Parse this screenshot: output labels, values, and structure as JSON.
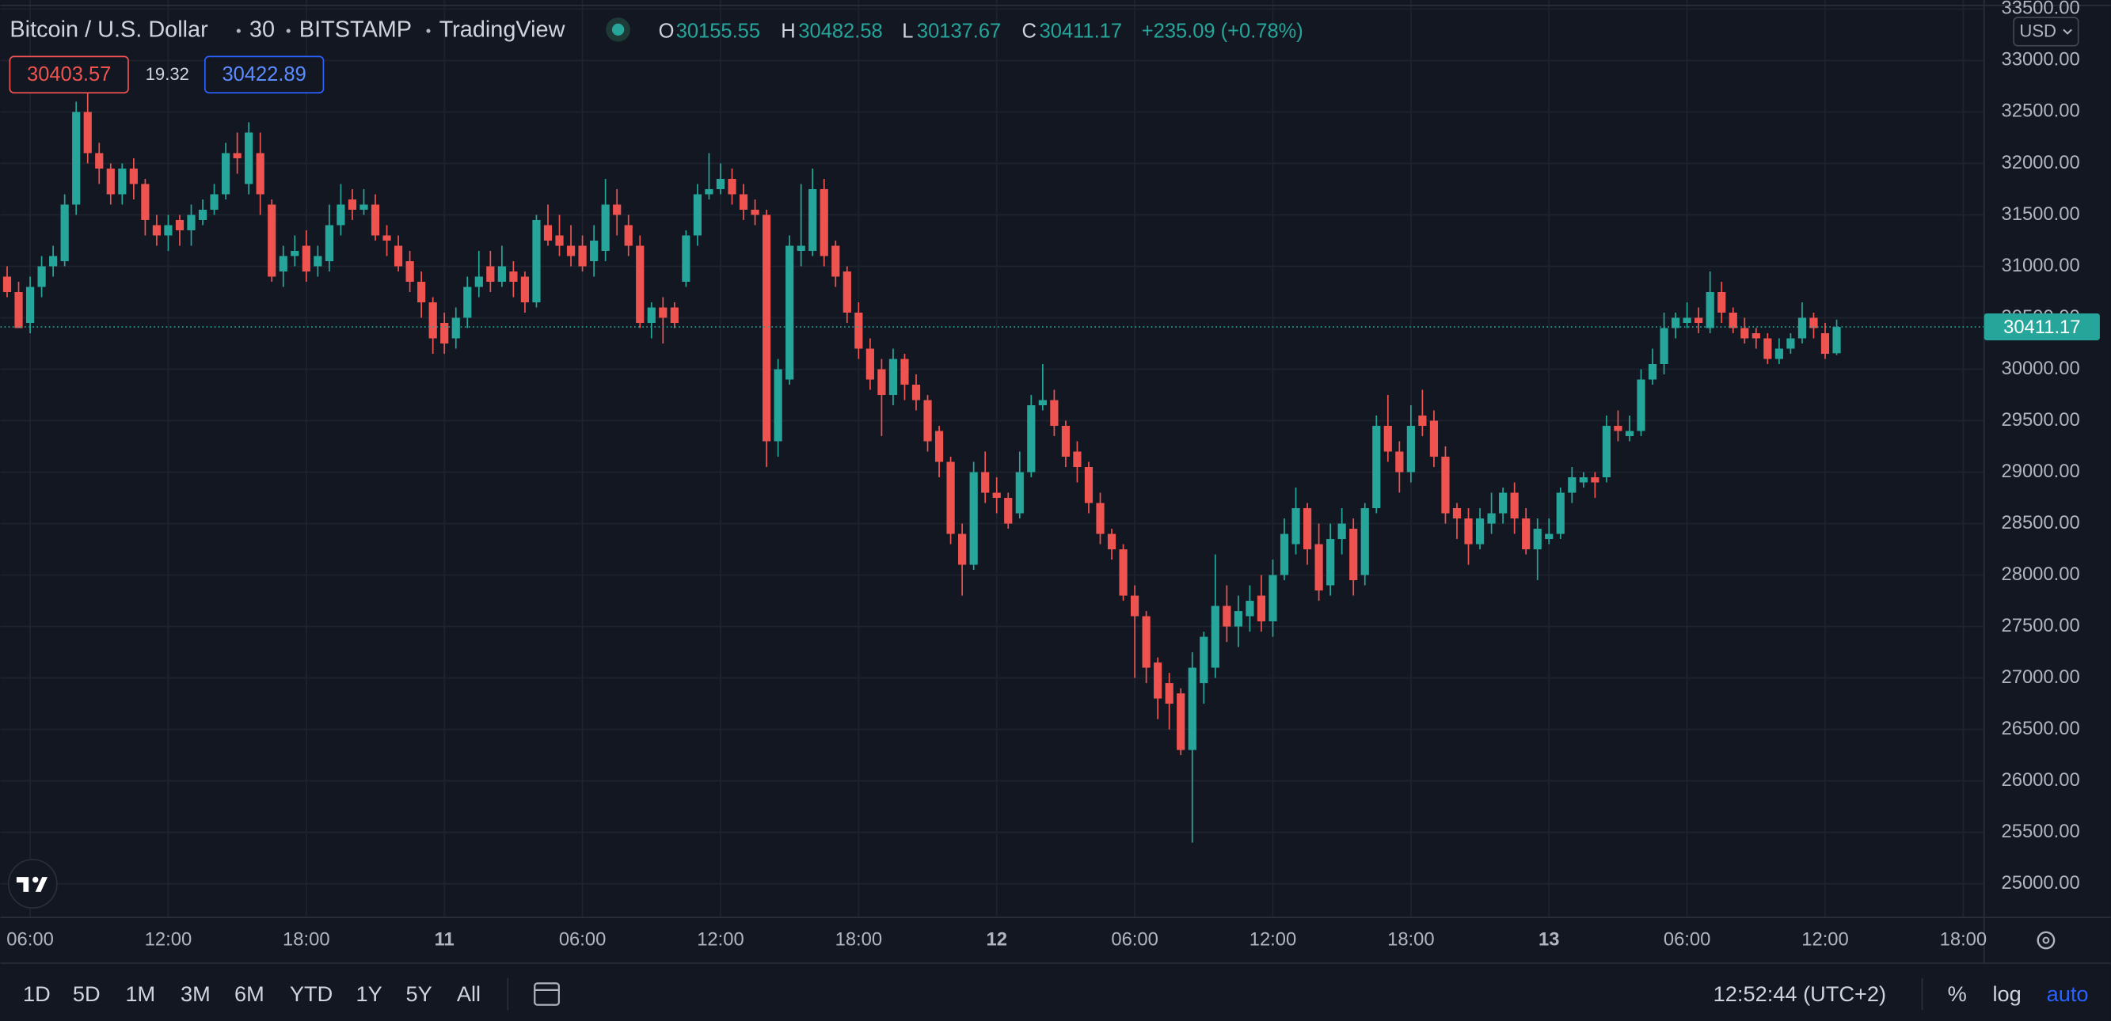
{
  "chart_data": {
    "type": "candlestick",
    "title": "Bitcoin / U.S. Dollar",
    "interval": "30",
    "exchange": "BITSTAMP",
    "source": "TradingView",
    "ohlc_labels": [
      "O",
      "H",
      "L",
      "C"
    ],
    "change": "+235.09 (+0.78%)",
    "sell_price": 30403.57,
    "spread": 19.32,
    "buy_price": 30422.89,
    "currency": "USD",
    "up_color": "#26a69a",
    "down_color": "#ef5350",
    "grid": true,
    "ylim": [
      24673,
      33588
    ],
    "yticks": [
      {
        "value": 25000,
        "label": "25000.00"
      },
      {
        "value": 25500,
        "label": "25500.00"
      },
      {
        "value": 26000,
        "label": "26000.00"
      },
      {
        "value": 26500,
        "label": "26500.00"
      },
      {
        "value": 27000,
        "label": "27000.00"
      },
      {
        "value": 27500,
        "label": "27500.00"
      },
      {
        "value": 28000,
        "label": "28000.00"
      },
      {
        "value": 28500,
        "label": "28500.00"
      },
      {
        "value": 29000,
        "label": "29000.00"
      },
      {
        "value": 29500,
        "label": "29500.00"
      },
      {
        "value": 30000,
        "label": "30000.00"
      },
      {
        "value": 30500,
        "label": "30500.00"
      },
      {
        "value": 31000,
        "label": "31000.00"
      },
      {
        "value": 31500,
        "label": "31500.00"
      },
      {
        "value": 32000,
        "label": "32000.00"
      },
      {
        "value": 32500,
        "label": "32500.00"
      },
      {
        "value": 33000,
        "label": "33000.00"
      },
      {
        "value": 33500,
        "label": "33500.00"
      }
    ],
    "categories": [
      null,
      null,
      "06:00",
      null,
      null,
      null,
      null,
      null,
      null,
      null,
      null,
      null,
      null,
      null,
      "12:00",
      null,
      null,
      null,
      null,
      null,
      null,
      null,
      null,
      null,
      null,
      null,
      "18:00",
      null,
      null,
      null,
      null,
      null,
      null,
      null,
      null,
      null,
      null,
      null,
      "11",
      null,
      null,
      null,
      null,
      null,
      null,
      null,
      null,
      null,
      null,
      null,
      "06:00",
      null,
      null,
      null,
      null,
      null,
      null,
      null,
      null,
      null,
      null,
      null,
      "12:00",
      null,
      null,
      null,
      null,
      null,
      null,
      null,
      null,
      null,
      null,
      null,
      "18:00",
      null,
      null,
      null,
      null,
      null,
      null,
      null,
      null,
      null,
      null,
      null,
      "12",
      null,
      null,
      null,
      null,
      null,
      null,
      null,
      null,
      null,
      null,
      null,
      "06:00",
      null,
      null,
      null,
      null,
      null,
      null,
      null,
      null,
      null,
      null,
      null,
      "12:00",
      null,
      null,
      null,
      null,
      null,
      null,
      null,
      null,
      null,
      null,
      null,
      "18:00",
      null,
      null,
      null,
      null,
      null,
      null,
      null,
      null,
      null,
      null,
      null,
      "13",
      null,
      null,
      null,
      null,
      null,
      null,
      null,
      null,
      null,
      null,
      null,
      "06:00",
      null,
      null,
      null,
      null,
      null,
      null,
      null,
      null,
      null,
      null,
      null,
      "12:00",
      null,
      null,
      null,
      null,
      null,
      null,
      null,
      null,
      null,
      null,
      null,
      "18:00"
    ],
    "candles": [
      [
        30900,
        31000,
        30700,
        30750
      ],
      [
        30750,
        30850,
        30400,
        30400
      ],
      [
        30450,
        30900,
        30350,
        30800
      ],
      [
        30800,
        31100,
        30700,
        31000
      ],
      [
        31000,
        31200,
        30900,
        31100
      ],
      [
        31050,
        31700,
        31000,
        31600
      ],
      [
        31600,
        32600,
        31500,
        32500
      ],
      [
        32500,
        32700,
        32000,
        32100
      ],
      [
        32100,
        32200,
        31800,
        31950
      ],
      [
        31950,
        32000,
        31600,
        31700
      ],
      [
        31700,
        32000,
        31600,
        31950
      ],
      [
        31950,
        32050,
        31650,
        31800
      ],
      [
        31800,
        31850,
        31300,
        31450
      ],
      [
        31400,
        31500,
        31200,
        31300
      ],
      [
        31300,
        31500,
        31150,
        31400
      ],
      [
        31450,
        31500,
        31200,
        31350
      ],
      [
        31350,
        31600,
        31200,
        31500
      ],
      [
        31450,
        31650,
        31400,
        31550
      ],
      [
        31550,
        31800,
        31500,
        31700
      ],
      [
        31700,
        32200,
        31650,
        32100
      ],
      [
        32100,
        32300,
        31900,
        32050
      ],
      [
        31800,
        32400,
        31700,
        32300
      ],
      [
        32100,
        32300,
        31500,
        31700
      ],
      [
        31600,
        31650,
        30850,
        30900
      ],
      [
        30950,
        31200,
        30800,
        31100
      ],
      [
        31100,
        31300,
        31000,
        31150
      ],
      [
        31200,
        31350,
        30850,
        30950
      ],
      [
        31000,
        31200,
        30900,
        31100
      ],
      [
        31050,
        31600,
        30950,
        31400
      ],
      [
        31400,
        31800,
        31300,
        31600
      ],
      [
        31650,
        31750,
        31450,
        31550
      ],
      [
        31550,
        31750,
        31500,
        31600
      ],
      [
        31600,
        31700,
        31250,
        31300
      ],
      [
        31300,
        31400,
        31100,
        31250
      ],
      [
        31200,
        31300,
        30950,
        31000
      ],
      [
        31050,
        31150,
        30750,
        30850
      ],
      [
        30850,
        30950,
        30500,
        30650
      ],
      [
        30650,
        30700,
        30150,
        30300
      ],
      [
        30450,
        30550,
        30150,
        30250
      ],
      [
        30300,
        30600,
        30200,
        30500
      ],
      [
        30500,
        30900,
        30400,
        30800
      ],
      [
        30800,
        31150,
        30700,
        30900
      ],
      [
        31000,
        31150,
        30750,
        30850
      ],
      [
        30850,
        31200,
        30800,
        31000
      ],
      [
        30950,
        31050,
        30700,
        30850
      ],
      [
        30900,
        30950,
        30550,
        30650
      ],
      [
        30650,
        31500,
        30600,
        31450
      ],
      [
        31400,
        31600,
        31200,
        31250
      ],
      [
        31300,
        31500,
        31100,
        31200
      ],
      [
        31200,
        31400,
        31000,
        31100
      ],
      [
        31200,
        31300,
        30950,
        31000
      ],
      [
        31050,
        31400,
        30900,
        31250
      ],
      [
        31150,
        31850,
        31050,
        31600
      ],
      [
        31600,
        31750,
        31300,
        31500
      ],
      [
        31400,
        31500,
        31100,
        31200
      ],
      [
        31200,
        31300,
        30400,
        30450
      ],
      [
        30450,
        30650,
        30300,
        30600
      ],
      [
        30600,
        30700,
        30250,
        30500
      ],
      [
        30600,
        30650,
        30400,
        30450
      ],
      [
        30850,
        31350,
        30800,
        31300
      ],
      [
        31300,
        31800,
        31200,
        31700
      ],
      [
        31700,
        32100,
        31650,
        31750
      ],
      [
        31750,
        32000,
        31700,
        31850
      ],
      [
        31850,
        31950,
        31600,
        31700
      ],
      [
        31700,
        31800,
        31450,
        31550
      ],
      [
        31550,
        31650,
        31400,
        31500
      ],
      [
        31500,
        31550,
        29050,
        29300
      ],
      [
        29300,
        30100,
        29150,
        30000
      ],
      [
        29900,
        31300,
        29850,
        31200
      ],
      [
        31150,
        31800,
        31000,
        31200
      ],
      [
        31150,
        31950,
        31100,
        31750
      ],
      [
        31750,
        31850,
        31000,
        31100
      ],
      [
        31200,
        31250,
        30800,
        30900
      ],
      [
        30950,
        31000,
        30450,
        30550
      ],
      [
        30550,
        30650,
        30100,
        30200
      ],
      [
        30200,
        30300,
        29800,
        29900
      ],
      [
        30000,
        30100,
        29350,
        29750
      ],
      [
        29750,
        30200,
        29650,
        30100
      ],
      [
        30100,
        30150,
        29700,
        29850
      ],
      [
        29850,
        29950,
        29600,
        29700
      ],
      [
        29700,
        29750,
        29200,
        29300
      ],
      [
        29400,
        29450,
        28950,
        29100
      ],
      [
        29100,
        29150,
        28300,
        28400
      ],
      [
        28400,
        28500,
        27800,
        28100
      ],
      [
        28100,
        29100,
        28050,
        29000
      ],
      [
        29000,
        29200,
        28700,
        28800
      ],
      [
        28800,
        28950,
        28600,
        28750
      ],
      [
        28750,
        28800,
        28450,
        28500
      ],
      [
        28600,
        29200,
        28550,
        29000
      ],
      [
        29000,
        29750,
        28950,
        29650
      ],
      [
        29650,
        30050,
        29600,
        29700
      ],
      [
        29700,
        29800,
        29350,
        29450
      ],
      [
        29450,
        29500,
        29050,
        29150
      ],
      [
        29200,
        29300,
        28900,
        29050
      ],
      [
        29050,
        29100,
        28600,
        28700
      ],
      [
        28700,
        28800,
        28300,
        28400
      ],
      [
        28400,
        28450,
        28150,
        28250
      ],
      [
        28250,
        28300,
        27750,
        27800
      ],
      [
        27800,
        27900,
        27000,
        27600
      ],
      [
        27600,
        27650,
        26950,
        27100
      ],
      [
        27150,
        27200,
        26600,
        26800
      ],
      [
        26950,
        27050,
        26500,
        26750
      ],
      [
        26850,
        26900,
        26250,
        26300
      ],
      [
        26300,
        27250,
        25400,
        27100
      ],
      [
        26950,
        27450,
        26750,
        27400
      ],
      [
        27100,
        28200,
        27000,
        27700
      ],
      [
        27700,
        27900,
        27350,
        27500
      ],
      [
        27500,
        27800,
        27300,
        27650
      ],
      [
        27600,
        27900,
        27450,
        27750
      ],
      [
        27800,
        28000,
        27450,
        27550
      ],
      [
        27550,
        28150,
        27400,
        28000
      ],
      [
        28000,
        28550,
        27950,
        28400
      ],
      [
        28300,
        28850,
        28200,
        28650
      ],
      [
        28650,
        28700,
        28100,
        28250
      ],
      [
        28300,
        28500,
        27750,
        27850
      ],
      [
        27900,
        28500,
        27800,
        28350
      ],
      [
        28350,
        28650,
        28200,
        28500
      ],
      [
        28450,
        28550,
        27800,
        27950
      ],
      [
        28000,
        28700,
        27900,
        28650
      ],
      [
        28650,
        29550,
        28600,
        29450
      ],
      [
        29450,
        29750,
        29100,
        29200
      ],
      [
        29200,
        29300,
        28800,
        29000
      ],
      [
        29000,
        29650,
        28900,
        29450
      ],
      [
        29550,
        29800,
        29350,
        29450
      ],
      [
        29500,
        29600,
        29050,
        29150
      ],
      [
        29150,
        29250,
        28500,
        28600
      ],
      [
        28650,
        28700,
        28350,
        28550
      ],
      [
        28550,
        28650,
        28100,
        28300
      ],
      [
        28300,
        28650,
        28250,
        28550
      ],
      [
        28500,
        28800,
        28400,
        28600
      ],
      [
        28600,
        28850,
        28500,
        28800
      ],
      [
        28800,
        28900,
        28400,
        28550
      ],
      [
        28550,
        28650,
        28200,
        28250
      ],
      [
        28250,
        28550,
        27950,
        28450
      ],
      [
        28350,
        28550,
        28300,
        28400
      ],
      [
        28400,
        28850,
        28350,
        28800
      ],
      [
        28800,
        29050,
        28700,
        28950
      ],
      [
        28900,
        29000,
        28850,
        28950
      ],
      [
        28950,
        29000,
        28750,
        28900
      ],
      [
        28950,
        29550,
        28900,
        29450
      ],
      [
        29450,
        29600,
        29300,
        29400
      ],
      [
        29350,
        29550,
        29300,
        29400
      ],
      [
        29400,
        30000,
        29350,
        29900
      ],
      [
        29900,
        30200,
        29850,
        30050
      ],
      [
        30050,
        30550,
        29950,
        30400
      ],
      [
        30400,
        30550,
        30300,
        30500
      ],
      [
        30450,
        30650,
        30400,
        30500
      ],
      [
        30500,
        30600,
        30350,
        30450
      ],
      [
        30400,
        30950,
        30350,
        30750
      ],
      [
        30750,
        30850,
        30450,
        30550
      ],
      [
        30550,
        30600,
        30350,
        30400
      ],
      [
        30400,
        30500,
        30250,
        30300
      ],
      [
        30350,
        30400,
        30200,
        30300
      ],
      [
        30300,
        30350,
        30050,
        30100
      ],
      [
        30100,
        30300,
        30050,
        30200
      ],
      [
        30200,
        30350,
        30150,
        30300
      ],
      [
        30300,
        30650,
        30250,
        30500
      ],
      [
        30500,
        30550,
        30300,
        30400
      ],
      [
        30350,
        30450,
        30100,
        30150
      ],
      [
        30155.55,
        30482.58,
        30137.67,
        30411.17
      ],
      null,
      null,
      null,
      null,
      null,
      null,
      null,
      null,
      null,
      null,
      null
    ],
    "range_buttons": [
      "1D",
      "5D",
      "1M",
      "3M",
      "6M",
      "YTD",
      "1Y",
      "5Y",
      "All"
    ],
    "clock": "12:52:44 (UTC+2)",
    "scale_buttons": [
      "%",
      "log",
      "auto"
    ]
  }
}
